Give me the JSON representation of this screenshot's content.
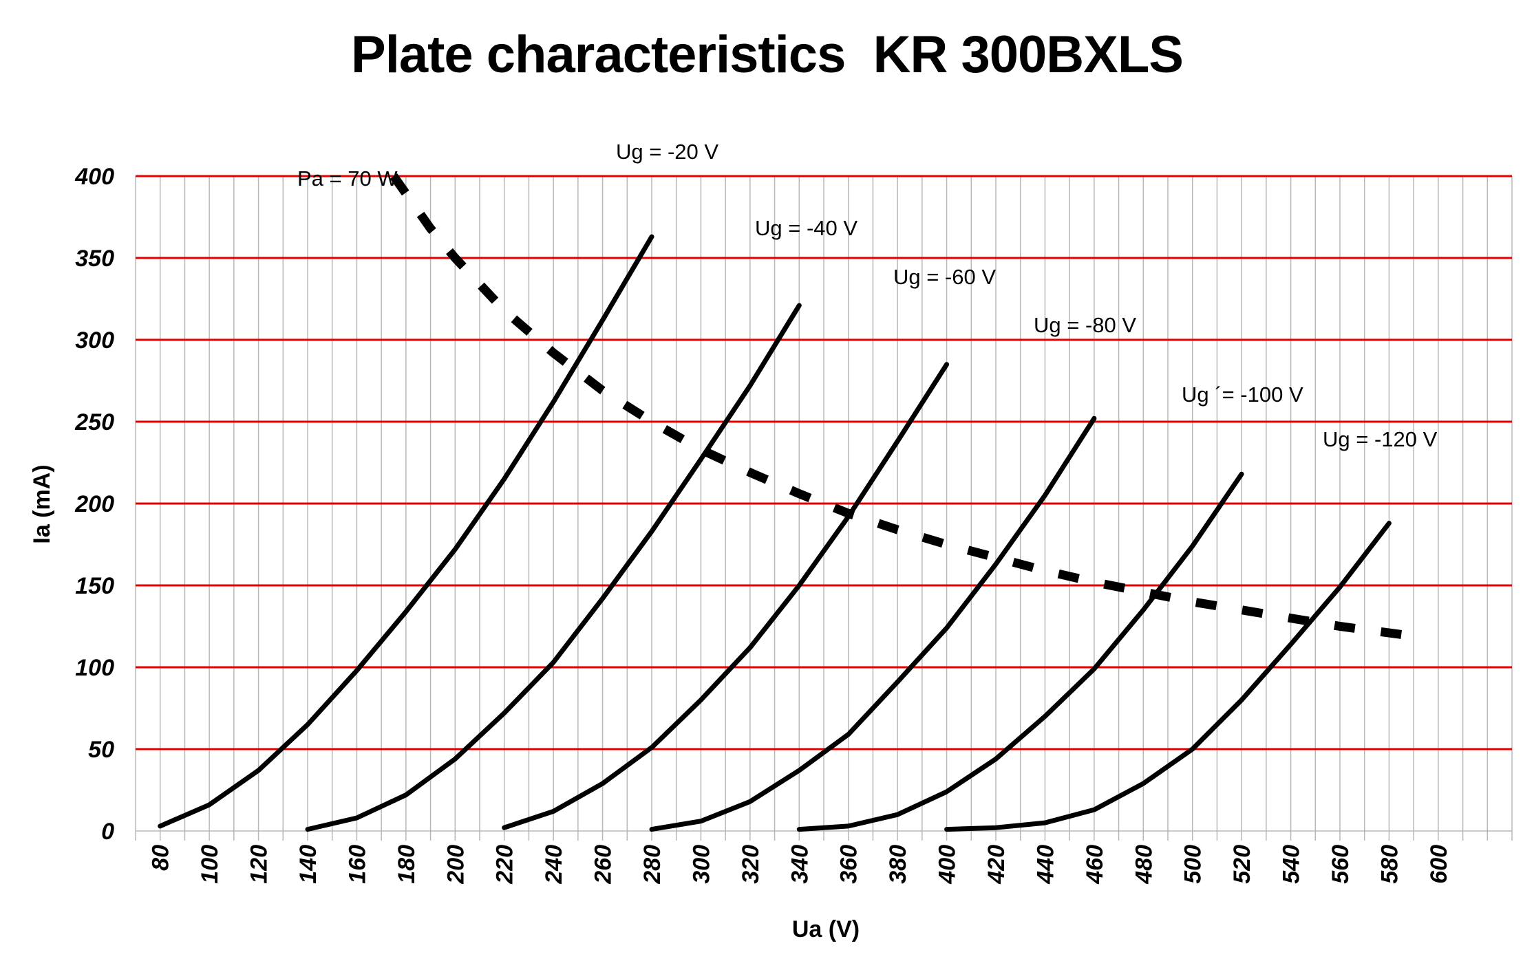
{
  "chart_data": {
    "type": "line",
    "title": "Plate characteristics  KR 300BXLS",
    "xlabel": "Ua (V)",
    "ylabel": "Ia (mA)",
    "xlim": [
      70,
      630
    ],
    "ylim": [
      0,
      400
    ],
    "x_ticks": [
      80,
      100,
      120,
      140,
      160,
      180,
      200,
      220,
      240,
      260,
      280,
      300,
      320,
      340,
      360,
      380,
      400,
      420,
      440,
      460,
      480,
      500,
      520,
      540,
      560,
      580,
      600
    ],
    "y_ticks": [
      0,
      50,
      100,
      150,
      200,
      250,
      300,
      350,
      400
    ],
    "grid": {
      "horizontal_color": "#e60000",
      "vertical_color": "#b8b8b8"
    },
    "line_color": "#000000",
    "series": [
      {
        "name": "Ug = -20 V",
        "points": [
          [
            80,
            3
          ],
          [
            100,
            16
          ],
          [
            120,
            37
          ],
          [
            140,
            65
          ],
          [
            160,
            98
          ],
          [
            180,
            134
          ],
          [
            200,
            172
          ],
          [
            220,
            215
          ],
          [
            240,
            262
          ],
          [
            260,
            312
          ],
          [
            280,
            363
          ]
        ]
      },
      {
        "name": "Ug = -40 V",
        "points": [
          [
            140,
            1
          ],
          [
            160,
            8
          ],
          [
            180,
            22
          ],
          [
            200,
            44
          ],
          [
            220,
            72
          ],
          [
            240,
            103
          ],
          [
            260,
            142
          ],
          [
            280,
            183
          ],
          [
            300,
            227
          ],
          [
            320,
            272
          ],
          [
            340,
            321
          ]
        ]
      },
      {
        "name": "Ug = -60 V",
        "points": [
          [
            220,
            2
          ],
          [
            240,
            12
          ],
          [
            260,
            29
          ],
          [
            280,
            51
          ],
          [
            300,
            80
          ],
          [
            320,
            112
          ],
          [
            340,
            150
          ],
          [
            360,
            192
          ],
          [
            380,
            238
          ],
          [
            400,
            285
          ]
        ]
      },
      {
        "name": "Ug = -80 V",
        "points": [
          [
            280,
            1
          ],
          [
            300,
            6
          ],
          [
            320,
            18
          ],
          [
            340,
            37
          ],
          [
            360,
            59
          ],
          [
            380,
            91
          ],
          [
            400,
            124
          ],
          [
            420,
            163
          ],
          [
            440,
            205
          ],
          [
            460,
            252
          ]
        ]
      },
      {
        "name": "Ug ´= -100 V",
        "points": [
          [
            340,
            1
          ],
          [
            360,
            3
          ],
          [
            380,
            10
          ],
          [
            400,
            24
          ],
          [
            420,
            44
          ],
          [
            440,
            70
          ],
          [
            460,
            99
          ],
          [
            480,
            135
          ],
          [
            500,
            174
          ],
          [
            520,
            218
          ]
        ]
      },
      {
        "name": "Ug = -120 V",
        "points": [
          [
            400,
            1
          ],
          [
            420,
            2
          ],
          [
            440,
            5
          ],
          [
            460,
            13
          ],
          [
            480,
            29
          ],
          [
            500,
            50
          ],
          [
            520,
            80
          ],
          [
            540,
            114
          ],
          [
            560,
            149
          ],
          [
            580,
            188
          ]
        ]
      }
    ],
    "dissipation_curve": {
      "name": "Pa = 70 W",
      "points": [
        [
          175,
          400
        ],
        [
          190,
          368
        ],
        [
          200,
          350
        ],
        [
          220,
          318
        ],
        [
          240,
          292
        ],
        [
          260,
          269
        ],
        [
          280,
          250
        ],
        [
          300,
          233
        ],
        [
          320,
          219
        ],
        [
          340,
          206
        ],
        [
          360,
          194
        ],
        [
          380,
          184
        ],
        [
          400,
          175
        ],
        [
          420,
          167
        ],
        [
          440,
          159
        ],
        [
          460,
          152
        ],
        [
          480,
          146
        ],
        [
          500,
          140
        ],
        [
          520,
          135
        ],
        [
          540,
          130
        ],
        [
          560,
          125
        ],
        [
          590,
          119
        ]
      ]
    }
  }
}
